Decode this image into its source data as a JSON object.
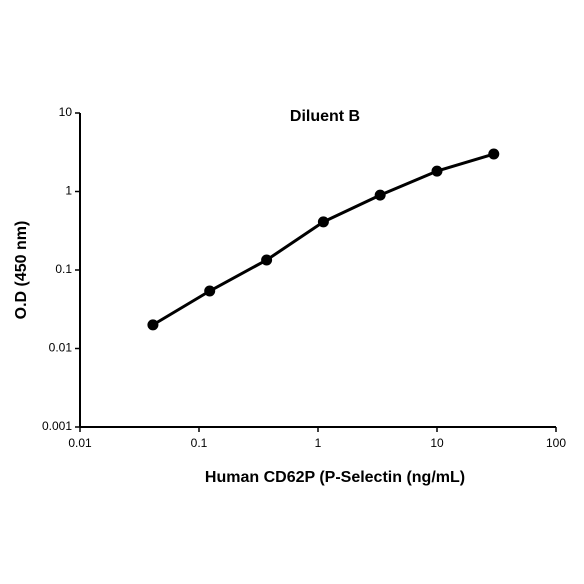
{
  "chart_data": {
    "type": "line",
    "title": "Diluent B",
    "x_label": "Human CD62P (P-Selectin (ng/mL)",
    "y_label": "O.D (450 nm)",
    "x": [
      0.041,
      0.123,
      0.37,
      1.11,
      3.33,
      10,
      30
    ],
    "values": [
      0.02,
      0.054,
      0.134,
      0.41,
      0.9,
      1.82,
      3.0
    ],
    "color": "#000000",
    "xscale": "log",
    "yscale": "log",
    "xlim": [
      0.01,
      100
    ],
    "ylim": [
      0.001,
      10
    ],
    "xticks": [
      0.01,
      0.1,
      1,
      10,
      100
    ],
    "yticks": [
      0.001,
      0.01,
      0.1,
      1,
      10
    ],
    "grid": false
  }
}
